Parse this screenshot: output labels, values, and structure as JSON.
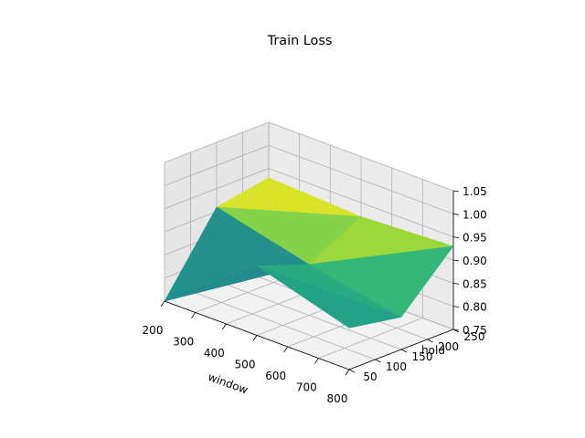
{
  "chart_data": {
    "type": "surface3d",
    "title": "Train Loss",
    "xlabel": "window",
    "ylabel": "hold",
    "zlabel": "",
    "x_ticks": [
      "200",
      "300",
      "400",
      "500",
      "600",
      "700",
      "800"
    ],
    "y_ticks": [
      "50",
      "100",
      "150",
      "200",
      "250"
    ],
    "z_ticks": [
      "0.75",
      "0.80",
      "0.85",
      "0.90",
      "0.95",
      "1.00",
      "1.05"
    ],
    "xlim": [
      200,
      800
    ],
    "ylim": [
      50,
      250
    ],
    "zlim": [
      0.75,
      1.05
    ],
    "colormap": "viridis",
    "grid": true,
    "x": [
      200,
      500,
      800
    ],
    "y": [
      50,
      150,
      250
    ],
    "z": [
      [
        0.75,
        0.9,
        0.84
      ],
      [
        0.91,
        0.86,
        0.82
      ],
      [
        0.93,
        0.92,
        0.93
      ]
    ]
  },
  "colors": {
    "pane_floor": "#f2f2f2",
    "pane_back": "#ebebeb",
    "pane_side": "#e6e6e6",
    "grid": "#b0b0b0"
  }
}
